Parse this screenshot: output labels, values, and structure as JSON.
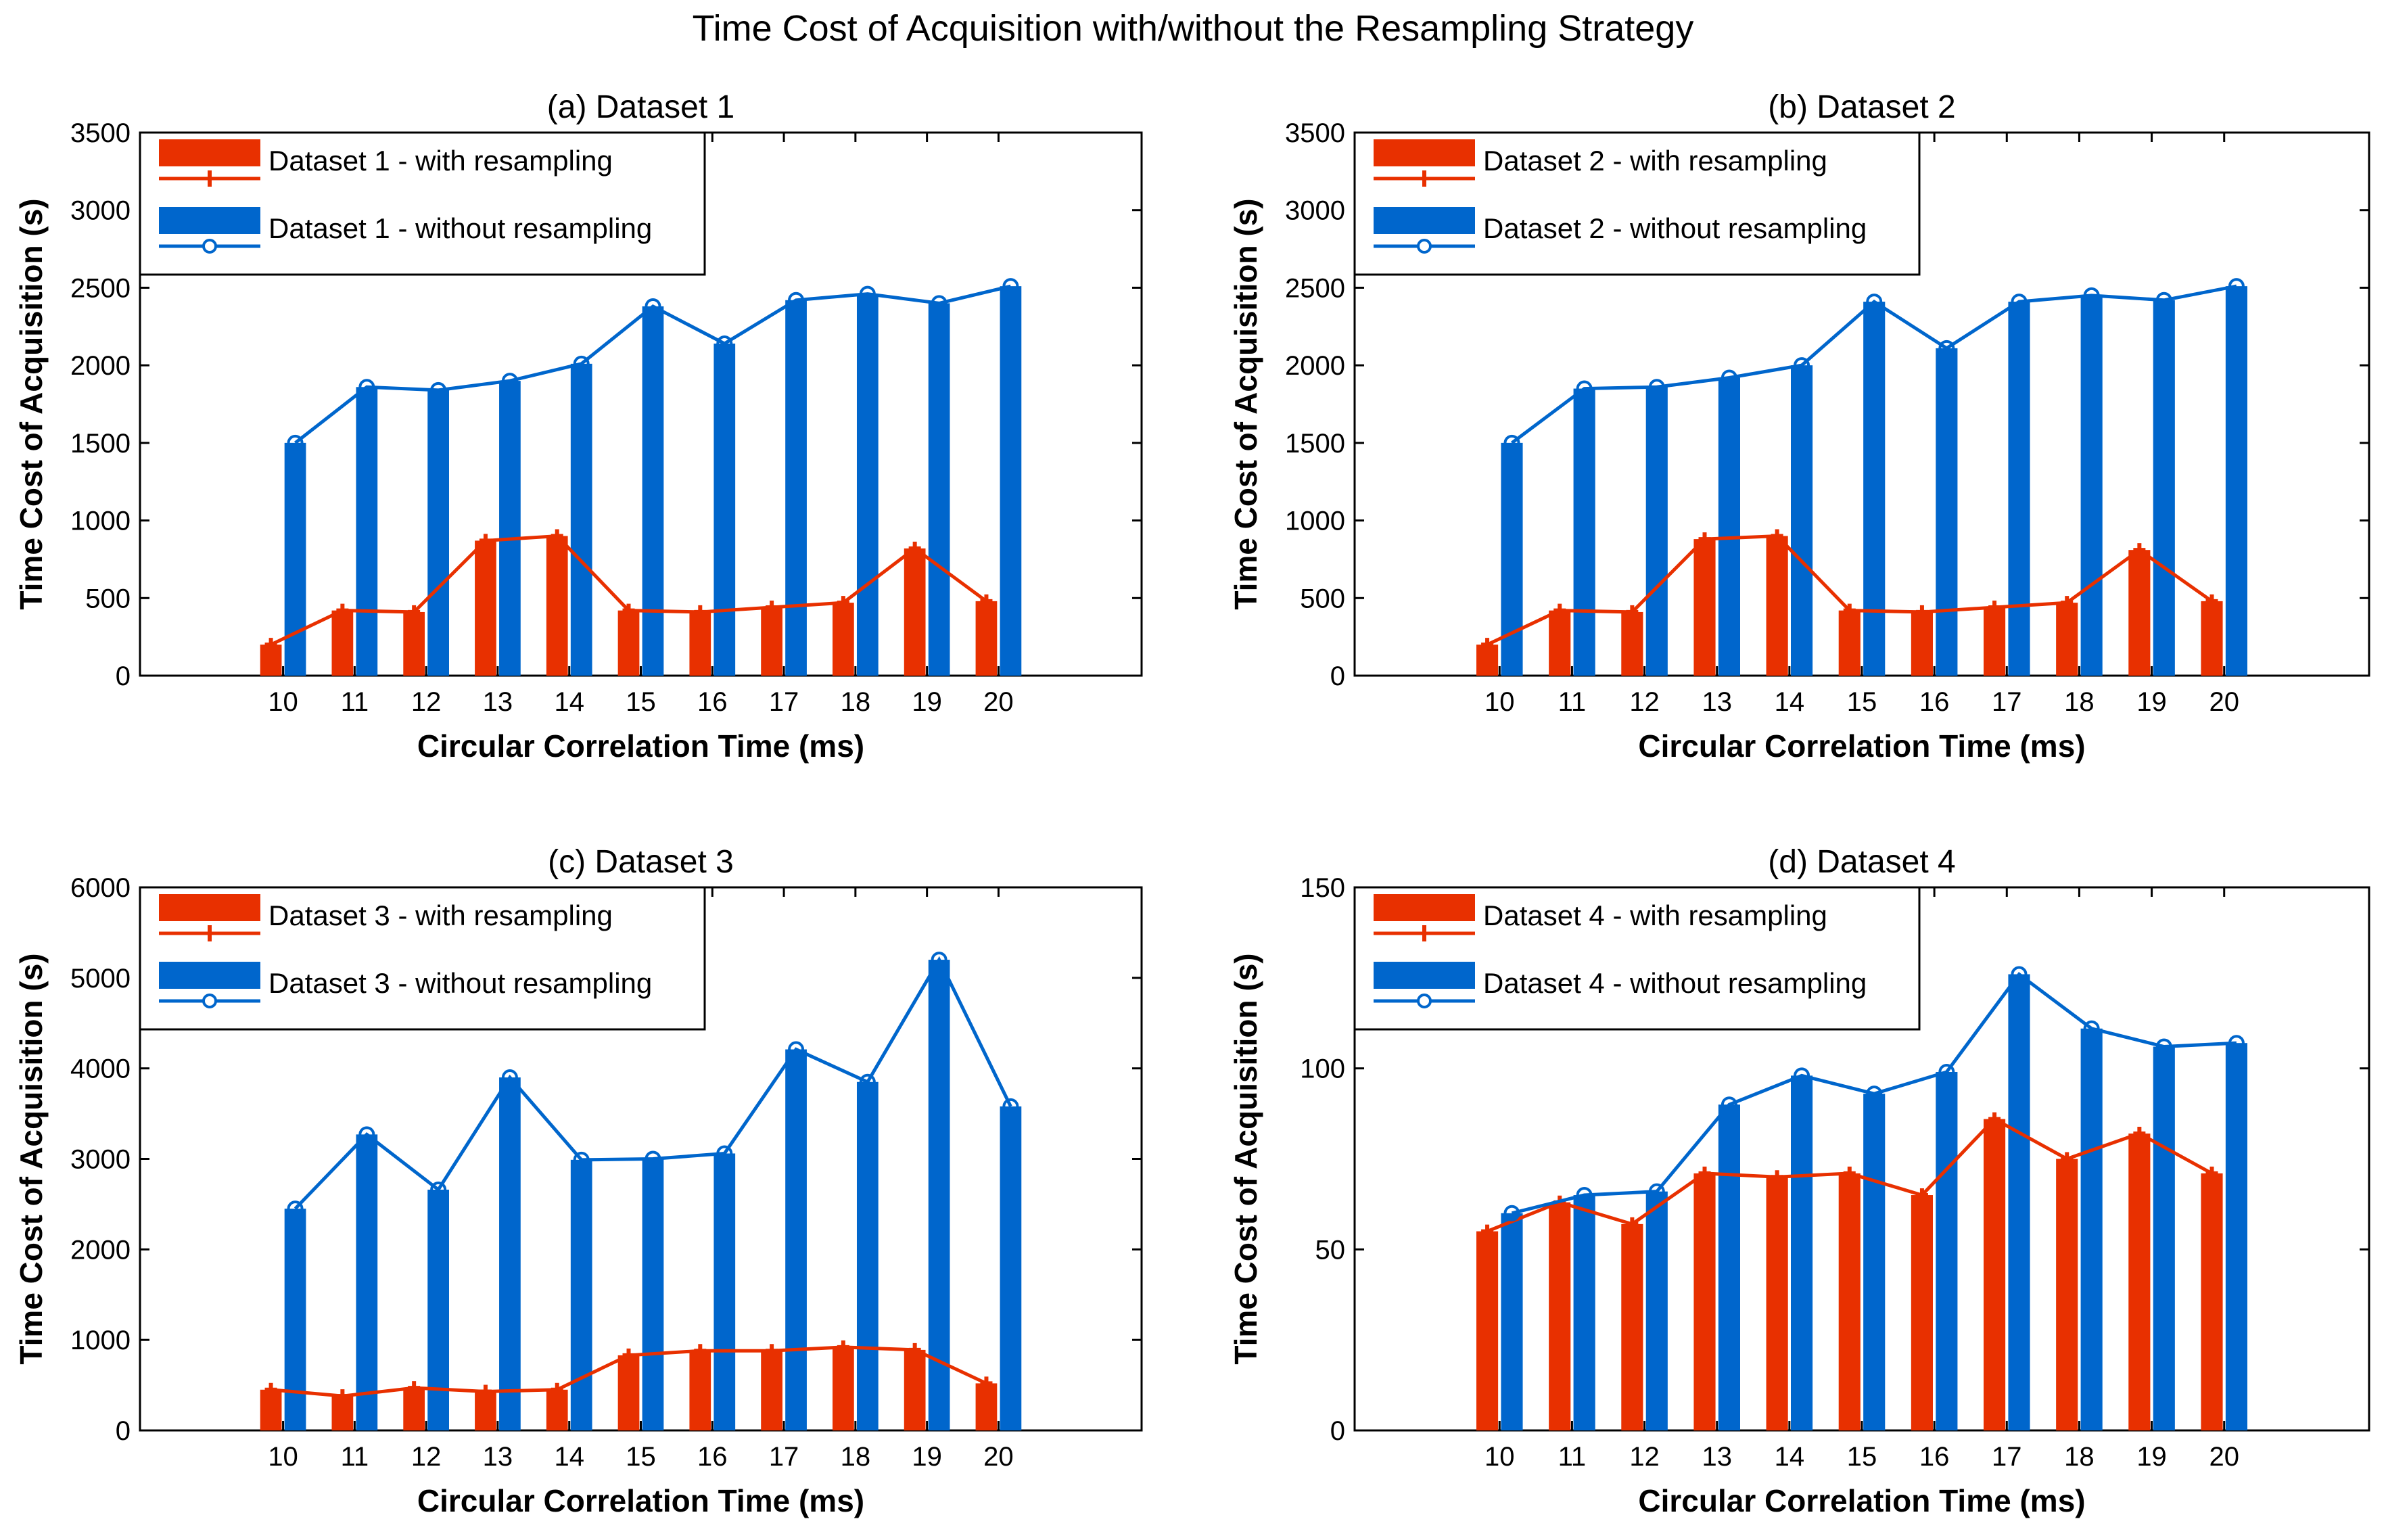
{
  "title": "Time Cost of Acquisition with/without the Resampling Strategy",
  "colors": {
    "with": "#e83000",
    "without": "#0066cc"
  },
  "chart_data": [
    {
      "type": "bar",
      "title": "(a) Dataset 1",
      "xlabel": "Circular  Correlation  Time (ms)",
      "ylabel": "Time Cost of Acquisition (s)",
      "categories": [
        10,
        11,
        12,
        13,
        14,
        15,
        16,
        17,
        18,
        19,
        20
      ],
      "ylim": [
        0,
        3500
      ],
      "yticks": [
        0,
        500,
        1000,
        1500,
        2000,
        2500,
        3000,
        3500
      ],
      "xlim": [
        8,
        22
      ],
      "legend_position": "top-left",
      "series": [
        {
          "name": "Dataset 1 - with resampling",
          "key": "with",
          "values": [
            200,
            420,
            410,
            870,
            900,
            420,
            410,
            440,
            470,
            820,
            480
          ]
        },
        {
          "name": "Dataset 1 - without resampling",
          "key": "without",
          "values": [
            1500,
            1860,
            1840,
            1900,
            2010,
            2380,
            2140,
            2420,
            2460,
            2400,
            2510
          ]
        }
      ]
    },
    {
      "type": "bar",
      "title": "(b) Dataset 2",
      "xlabel": "Circular  Correlation  Time (ms)",
      "ylabel": "Time Cost of Acquisition (s)",
      "categories": [
        10,
        11,
        12,
        13,
        14,
        15,
        16,
        17,
        18,
        19,
        20
      ],
      "ylim": [
        0,
        3500
      ],
      "yticks": [
        0,
        500,
        1000,
        1500,
        2000,
        2500,
        3000,
        3500
      ],
      "xlim": [
        8,
        22
      ],
      "legend_position": "top-left",
      "series": [
        {
          "name": "Dataset 2 - with resampling",
          "key": "with",
          "values": [
            200,
            420,
            410,
            880,
            900,
            420,
            410,
            440,
            470,
            810,
            480
          ]
        },
        {
          "name": "Dataset 2 - without resampling",
          "key": "without",
          "values": [
            1500,
            1850,
            1860,
            1920,
            2000,
            2410,
            2110,
            2410,
            2450,
            2420,
            2510
          ]
        }
      ]
    },
    {
      "type": "bar",
      "title": "(c) Dataset 3",
      "xlabel": "Circular  Correlation  Time (ms)",
      "ylabel": "Time Cost of Acquisition (s)",
      "categories": [
        10,
        11,
        12,
        13,
        14,
        15,
        16,
        17,
        18,
        19,
        20
      ],
      "ylim": [
        0,
        6000
      ],
      "yticks": [
        0,
        1000,
        2000,
        3000,
        4000,
        5000,
        6000
      ],
      "xlim": [
        8,
        22
      ],
      "legend_position": "top-left",
      "series": [
        {
          "name": "Dataset 3 - with resampling",
          "key": "with",
          "values": [
            450,
            380,
            470,
            430,
            450,
            830,
            880,
            880,
            920,
            890,
            520
          ]
        },
        {
          "name": "Dataset 3 - without resampling",
          "key": "without",
          "values": [
            2450,
            3270,
            2660,
            3900,
            2990,
            3000,
            3060,
            4210,
            3850,
            5200,
            3580
          ]
        }
      ]
    },
    {
      "type": "bar",
      "title": "(d) Dataset 4",
      "xlabel": "Circular  Correlation  Time (ms)",
      "ylabel": "Time Cost of Acquisition (s)",
      "categories": [
        10,
        11,
        12,
        13,
        14,
        15,
        16,
        17,
        18,
        19,
        20
      ],
      "ylim": [
        0,
        150
      ],
      "yticks": [
        0,
        50,
        100,
        150
      ],
      "xlim": [
        8,
        22
      ],
      "legend_position": "top-left",
      "series": [
        {
          "name": "Dataset 4 - with resampling",
          "key": "with",
          "values": [
            55,
            63,
            57,
            71,
            70,
            71,
            65,
            86,
            75,
            82,
            71
          ]
        },
        {
          "name": "Dataset 4 - without resampling",
          "key": "without",
          "values": [
            60,
            65,
            66,
            90,
            98,
            93,
            99,
            126,
            111,
            106,
            107
          ]
        }
      ]
    }
  ]
}
